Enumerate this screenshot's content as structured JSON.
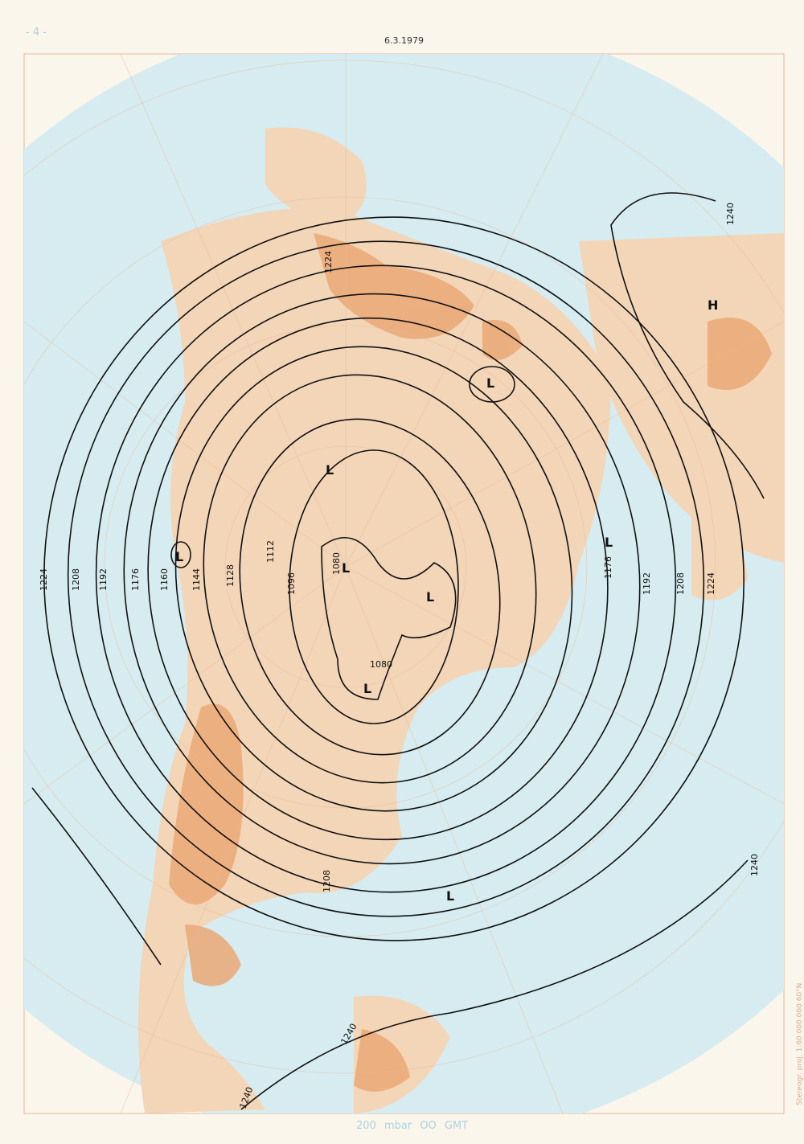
{
  "page_number": "- 4 -",
  "date": "6.3.1979",
  "footer": {
    "level": "200 mbar",
    "time": "OO GMT"
  },
  "projection_note": "Stereogr. proj. 1:60 000 000  60°N",
  "contour_labels": [
    "1080",
    "1096",
    "1112",
    "1128",
    "1144",
    "1160",
    "1176",
    "1192",
    "1208",
    "1224",
    "1240"
  ],
  "centers": {
    "low": "L",
    "high": "H"
  },
  "colors": {
    "ocean": "#d6ecf0",
    "land": "#f2c9a4",
    "high_terrain": "#e9a774",
    "paper": "#fbf6ec",
    "contour": "#111111",
    "grid": "#e8b89a"
  }
}
